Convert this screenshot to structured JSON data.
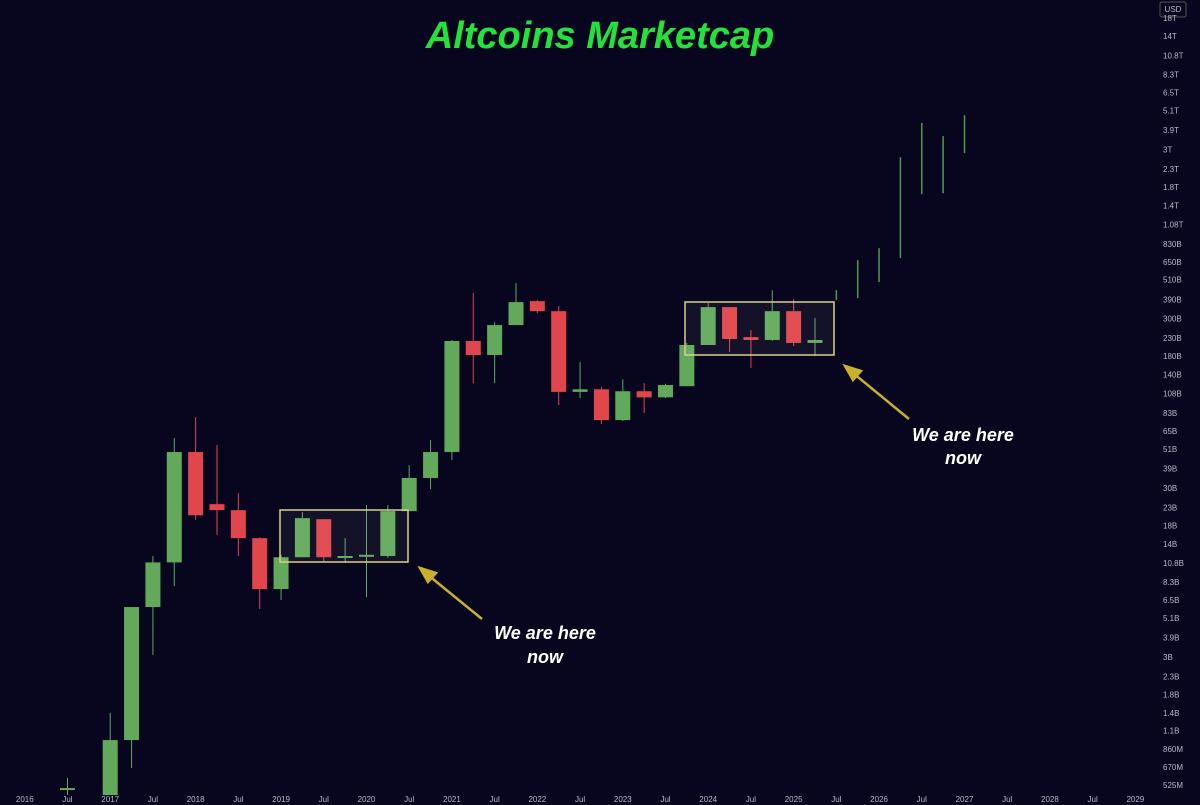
{
  "chart_data": {
    "type": "candlestick",
    "title": "Altcoins Marketcap",
    "currency": "USD",
    "log_scale": true,
    "grid": false,
    "up_color": "#62a95c",
    "down_color": "#e0464c",
    "projection_color": "#4f9a4c",
    "x": [
      2016.5,
      2017,
      2017.25,
      2017.5,
      2017.75,
      2018,
      2018.25,
      2018.5,
      2018.75,
      2019,
      2019.25,
      2019.5,
      2019.75,
      2020,
      2020.25,
      2020.5,
      2020.75,
      2021,
      2021.25,
      2021.5,
      2021.75,
      2022,
      2022.25,
      2022.5,
      2022.75,
      2023,
      2023.25,
      2023.5,
      2023.75,
      2024,
      2024.25,
      2024.5,
      2024.75,
      2025,
      2025.25
    ],
    "open": [
      497000000.0,
      464000000.0,
      980000000.0,
      5990000000.0,
      11000000000.0,
      49400000000.0,
      24300000000.0,
      22400000000.0,
      15300000000.0,
      7650000000.0,
      11800000000.0,
      19800000000.0,
      11800000000.0,
      12000000000.0,
      12000000000.0,
      22100000000.0,
      34700000000.0,
      49400000000.0,
      224000000000.0,
      185000000000.0,
      278000000000.0,
      385000000000.0,
      336000000000.0,
      112000000000.0,
      116000000000.0,
      76300000000.0,
      113000000000.0,
      104000000000.0,
      121000000000.0,
      212000000000.0,
      355000000000.0,
      236000000000.0,
      227000000000.0,
      336000000000.0,
      218000000000.0
    ],
    "high": [
      585000000.0,
      1420000000.0,
      5990000000.0,
      12000000000.0,
      59700000000.0,
      79400000000.0,
      54300000000.0,
      28200000000.0,
      15500000000.0,
      12200000000.0,
      21800000000.0,
      19800000000.0,
      15300000000.0,
      24000000000.0,
      24000000000.0,
      41400000000.0,
      58100000000.0,
      227000000000.0,
      430000000000.0,
      289000000000.0,
      492000000000.0,
      391000000000.0,
      360000000000.0,
      168000000000.0,
      120000000000.0,
      133000000000.0,
      126000000000.0,
      125000000000.0,
      218000000000.0,
      375000000000.0,
      355000000000.0,
      260000000000.0,
      447000000000.0,
      396000000000.0,
      306000000000.0
    ],
    "low": [
      464000000.0,
      464000000.0,
      670000000.0,
      3120000000.0,
      7970000000.0,
      19600000000.0,
      16000000000.0,
      12000000000.0,
      5830000000.0,
      6590000000.0,
      11800000000.0,
      11000000000.0,
      10900000000.0,
      6860000000.0,
      11700000000.0,
      22100000000.0,
      29800000000.0,
      44300000000.0,
      126000000000.0,
      126000000000.0,
      298000000000.0,
      327000000000.0,
      93600000000.0,
      103000000000.0,
      72300000000.0,
      75300000000.0,
      83900000000.0,
      103000000000.0,
      121000000000.0,
      212000000000.0,
      193000000000.0,
      155000000000.0,
      224000000000.0,
      209000000000.0,
      182000000000.0
    ],
    "close": [
      510000000.0,
      980000000.0,
      5990000000.0,
      11000000000.0,
      49400000000.0,
      20900000000.0,
      22400000000.0,
      15300000000.0,
      7650000000.0,
      11800000000.0,
      20100000000.0,
      11800000000.0,
      12000000000.0,
      12200000000.0,
      22100000000.0,
      34700000000.0,
      49400000000.0,
      224000000000.0,
      185000000000.0,
      278000000000.0,
      380000000000.0,
      336000000000.0,
      112000000000.0,
      116000000000.0,
      76300000000.0,
      113000000000.0,
      104000000000.0,
      123000000000.0,
      212000000000.0,
      355000000000.0,
      230000000000.0,
      227000000000.0,
      336000000000.0,
      218000000000.0,
      227000000000.0
    ],
    "projection": {
      "x": [
        2025.5,
        2025.75,
        2026,
        2026.25,
        2026.5,
        2026.75,
        2027
      ],
      "high": [
        447000000000.0,
        673000000000.0,
        792000000000.0,
        2730000000000.0,
        4350000000000.0,
        3640000000000.0,
        4840000000000.0
      ],
      "low": [
        391000000000.0,
        401000000000.0,
        499000000000.0,
        692000000000.0,
        1650000000000.0,
        1670000000000.0,
        2890000000000.0
      ]
    },
    "annotations": [
      {
        "lines": [
          "We are here",
          "now"
        ]
      },
      {
        "lines": [
          "We are here",
          "now"
        ]
      }
    ],
    "xlim": [
      2015.71,
      2029.23
    ],
    "xticks": [
      {
        "value": 2016,
        "label": "2016"
      },
      {
        "value": 2016.5,
        "label": "Jul"
      },
      {
        "value": 2017,
        "label": "2017"
      },
      {
        "value": 2017.5,
        "label": "Jul"
      },
      {
        "value": 2018,
        "label": "2018"
      },
      {
        "value": 2018.5,
        "label": "Jul"
      },
      {
        "value": 2019,
        "label": "2019"
      },
      {
        "value": 2019.5,
        "label": "Jul"
      },
      {
        "value": 2020,
        "label": "2020"
      },
      {
        "value": 2020.5,
        "label": "Jul"
      },
      {
        "value": 2021,
        "label": "2021"
      },
      {
        "value": 2021.5,
        "label": "Jul"
      },
      {
        "value": 2022,
        "label": "2022"
      },
      {
        "value": 2022.5,
        "label": "Jul"
      },
      {
        "value": 2023,
        "label": "2023"
      },
      {
        "value": 2023.5,
        "label": "Jul"
      },
      {
        "value": 2024,
        "label": "2024"
      },
      {
        "value": 2024.5,
        "label": "Jul"
      },
      {
        "value": 2025,
        "label": "2025"
      },
      {
        "value": 2025.5,
        "label": "Jul"
      },
      {
        "value": 2026,
        "label": "2026"
      },
      {
        "value": 2026.5,
        "label": "Jul"
      },
      {
        "value": 2027,
        "label": "2027"
      },
      {
        "value": 2027.5,
        "label": "Jul"
      },
      {
        "value": 2028,
        "label": "2028"
      },
      {
        "value": 2028.5,
        "label": "Jul"
      },
      {
        "value": 2029,
        "label": "2029"
      }
    ],
    "ylim": [
      405000000.0,
      23200000000000.0
    ],
    "yticks": [
      {
        "value": 18000000000000.0,
        "label": "18T"
      },
      {
        "value": 14000000000000.0,
        "label": "14T"
      },
      {
        "value": 10800000000000.0,
        "label": "10.8T"
      },
      {
        "value": 8300000000000.0,
        "label": "8.3T"
      },
      {
        "value": 6500000000000.0,
        "label": "6.5T"
      },
      {
        "value": 5100000000000.0,
        "label": "5.1T"
      },
      {
        "value": 3900000000000.0,
        "label": "3.9T"
      },
      {
        "value": 3000000000000.0,
        "label": "3T"
      },
      {
        "value": 2300000000000.0,
        "label": "2.3T"
      },
      {
        "value": 1800000000000.0,
        "label": "1.8T"
      },
      {
        "value": 1400000000000.0,
        "label": "1.4T"
      },
      {
        "value": 1080000000000.0,
        "label": "1.08T"
      },
      {
        "value": 830000000000.0,
        "label": "830B"
      },
      {
        "value": 650000000000.0,
        "label": "650B"
      },
      {
        "value": 510000000000.0,
        "label": "510B"
      },
      {
        "value": 390000000000.0,
        "label": "390B"
      },
      {
        "value": 300000000000.0,
        "label": "300B"
      },
      {
        "value": 230000000000.0,
        "label": "230B"
      },
      {
        "value": 180000000000.0,
        "label": "180B"
      },
      {
        "value": 140000000000.0,
        "label": "140B"
      },
      {
        "value": 108000000000.0,
        "label": "108B"
      },
      {
        "value": 83000000000.0,
        "label": "83B"
      },
      {
        "value": 65000000000.0,
        "label": "65B"
      },
      {
        "value": 51000000000.0,
        "label": "51B"
      },
      {
        "value": 39000000000.0,
        "label": "39B"
      },
      {
        "value": 30000000000.0,
        "label": "30B"
      },
      {
        "value": 23000000000.0,
        "label": "23B"
      },
      {
        "value": 18000000000.0,
        "label": "18B"
      },
      {
        "value": 14000000000.0,
        "label": "14B"
      },
      {
        "value": 10800000000.0,
        "label": "10.8B"
      },
      {
        "value": 8300000000.0,
        "label": "8.3B"
      },
      {
        "value": 6500000000.0,
        "label": "6.5B"
      },
      {
        "value": 5100000000.0,
        "label": "5.1B"
      },
      {
        "value": 3900000000.0,
        "label": "3.9B"
      },
      {
        "value": 3000000000.0,
        "label": "3B"
      },
      {
        "value": 2300000000.0,
        "label": "2.3B"
      },
      {
        "value": 1800000000.0,
        "label": "1.8B"
      },
      {
        "value": 1400000000.0,
        "label": "1.4B"
      },
      {
        "value": 1100000000.0,
        "label": "1.1B"
      },
      {
        "value": 860000000.0,
        "label": "860M"
      },
      {
        "value": 670000000.0,
        "label": "670M"
      },
      {
        "value": 525000000.0,
        "label": "525M"
      }
    ]
  }
}
